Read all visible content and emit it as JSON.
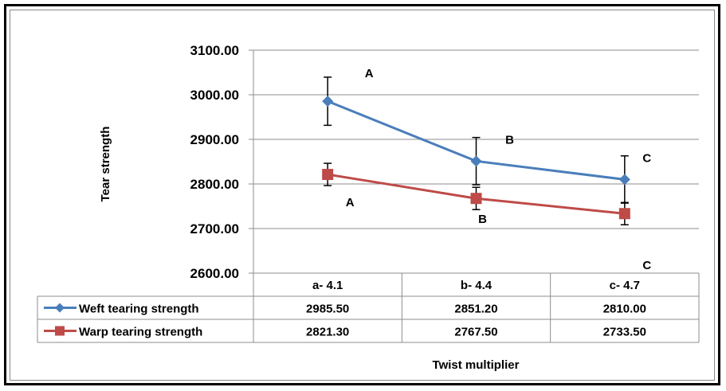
{
  "chart_data": {
    "type": "line",
    "categories": [
      "a- 4.1",
      "b- 4.4",
      "c- 4.7"
    ],
    "series": [
      {
        "name": "Weft tearing strength",
        "values": [
          2985.5,
          2851.2,
          2810.0
        ],
        "display": [
          "2985.50",
          "2851.20",
          "2810.00"
        ],
        "error": [
          54,
          53,
          53
        ],
        "letters": [
          "A",
          "B",
          "C"
        ],
        "color": "#4a7ebb",
        "marker": "diamond"
      },
      {
        "name": "Warp tearing strength",
        "values": [
          2821.3,
          2767.5,
          2733.5
        ],
        "display": [
          "2821.30",
          "2767.50",
          "2733.50"
        ],
        "error": [
          25,
          25,
          25
        ],
        "letters": [
          "A",
          "B",
          "C"
        ],
        "color": "#be4b48",
        "marker": "square"
      }
    ],
    "xlabel": "Twist multiplier",
    "ylabel": "Tear strength",
    "ylim": [
      2600,
      3100
    ],
    "yticks": [
      "2600.00",
      "2700.00",
      "2800.00",
      "2900.00",
      "3000.00",
      "3100.00"
    ],
    "grid": true,
    "legend": "data-table"
  }
}
